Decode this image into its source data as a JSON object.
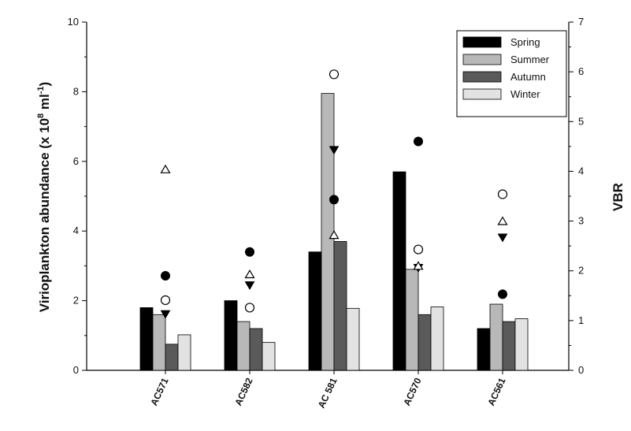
{
  "chart_data": {
    "type": "bar",
    "categories": [
      "AC571",
      "AC582",
      "AC 581",
      "AC570",
      "AC561"
    ],
    "series": [
      {
        "name": "Spring",
        "color": "#000000",
        "values": [
          1.8,
          2.0,
          3.4,
          5.7,
          1.2
        ]
      },
      {
        "name": "Summer",
        "color": "#b8b8b8",
        "values": [
          1.6,
          1.4,
          7.95,
          2.9,
          1.9
        ]
      },
      {
        "name": "Autumn",
        "color": "#5a5a5a",
        "values": [
          0.75,
          1.2,
          3.7,
          1.6,
          1.4
        ]
      },
      {
        "name": "Winter",
        "color": "#e2e2e2",
        "values": [
          1.02,
          0.8,
          1.78,
          1.82,
          1.48
        ]
      }
    ],
    "vbr_markers": [
      {
        "season": "Spring",
        "marker": "filled-circle",
        "values": [
          1.9,
          2.38,
          3.43,
          4.6,
          1.53
        ]
      },
      {
        "season": "Summer",
        "marker": "open-circle",
        "values": [
          1.41,
          1.26,
          5.95,
          2.43,
          3.54
        ]
      },
      {
        "season": "Autumn",
        "marker": "filled-triangle-down",
        "values": [
          1.13,
          1.71,
          4.43,
          2.06,
          2.67
        ]
      },
      {
        "season": "Winter",
        "marker": "open-triangle-up",
        "values": [
          4.04,
          1.93,
          2.72,
          2.1,
          3.0
        ]
      }
    ],
    "ylabel": "Virioplankton abundance (x 10^8 ml^-1)",
    "y2label": "VBR",
    "ylim": [
      0,
      10
    ],
    "y2lim": [
      0,
      7
    ],
    "yticks": [
      "0",
      "2",
      "4",
      "6",
      "8",
      "10"
    ],
    "y2ticks": [
      "0",
      "1",
      "2",
      "3",
      "4",
      "5",
      "6",
      "7"
    ],
    "legend_position": "top-right",
    "grid": false
  },
  "axis_title": {
    "left_prefix": "Virioplankton abundance (x 10",
    "left_exp1": "8",
    "left_mid": " ml",
    "left_exp2": "-1",
    "left_suffix": ")",
    "right": "VBR"
  }
}
